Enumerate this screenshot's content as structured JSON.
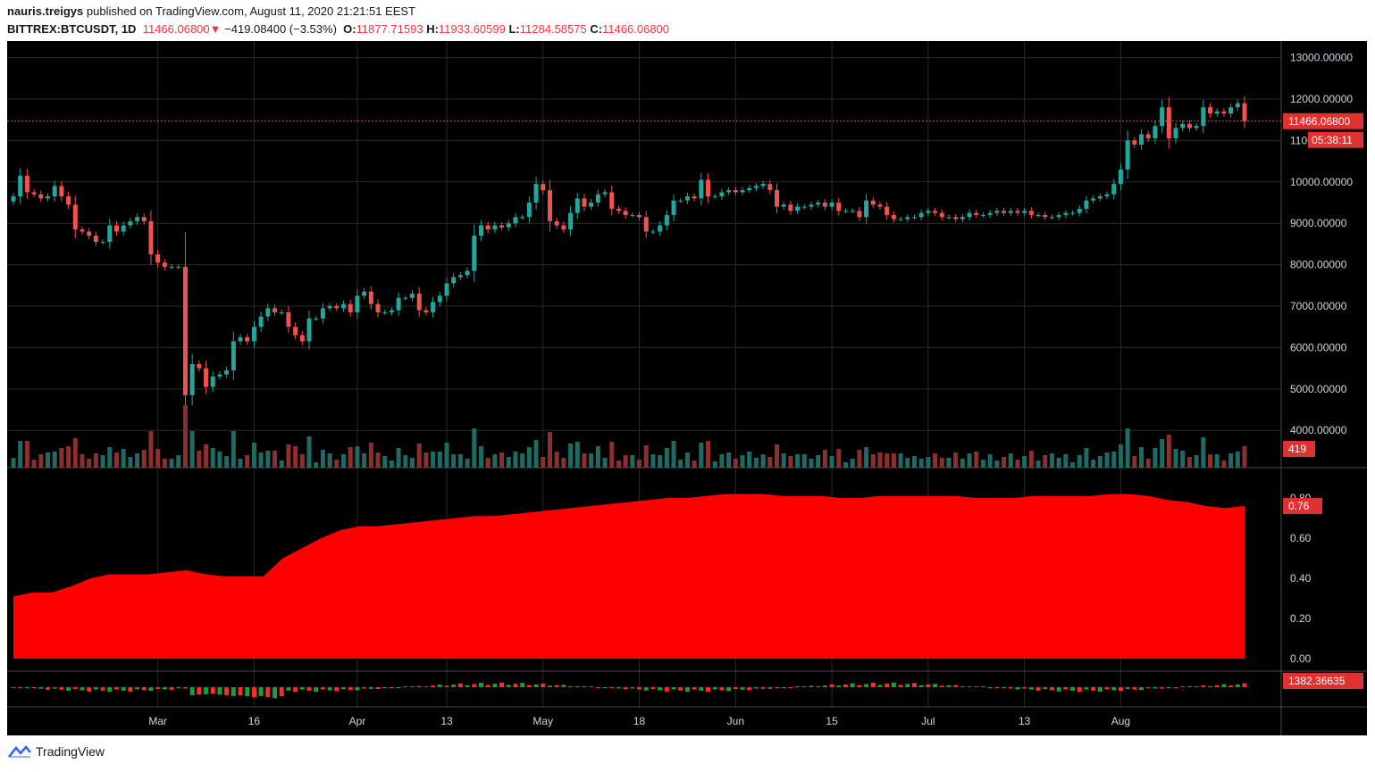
{
  "header": {
    "author": "nauris.treigys",
    "published": "published on TradingView.com, August 11, 2020 21:21:51 EEST",
    "symbol": "BITTREX:BTCUSDT, 1D",
    "last": "11466.06800",
    "change": "−419.08400 (−3.53%)",
    "open_label": "O:",
    "open": "11877.71593",
    "high_label": "H:",
    "high": "11933.60599",
    "low_label": "L:",
    "low": "11284.58575",
    "close_label": "C:",
    "close": "11466.06800"
  },
  "footer": {
    "brand": "TradingView"
  },
  "colors": {
    "up": "#26a69a",
    "down": "#ef5350",
    "bg": "#000000",
    "grid": "#2a2a2a",
    "tag": "#e03131",
    "indicator": "#ff0000"
  },
  "price_tags": {
    "last": "11466.06800",
    "countdown": "05:38:11",
    "volume": "419",
    "indicator": "0.76",
    "macd": "1382.36635"
  },
  "chart_data": {
    "type": "candlestick",
    "interval": "1D",
    "ylim": [
      3100,
      13400
    ],
    "yticks": [
      "13000.00000",
      "12000.00000",
      "11000.00000",
      "10000.00000",
      "9000.00000",
      "8000.00000",
      "7000.00000",
      "6000.00000",
      "5000.00000",
      "4000.00000"
    ],
    "xticks": [
      "Mar",
      "16",
      "Apr",
      "13",
      "May",
      "18",
      "Jun",
      "15",
      "Jul",
      "13",
      "Aug"
    ],
    "closes": [
      9650,
      10150,
      9750,
      9700,
      9600,
      9650,
      9900,
      9650,
      9450,
      8850,
      8800,
      8700,
      8550,
      8550,
      8950,
      8800,
      8950,
      9050,
      9150,
      9050,
      8250,
      8050,
      7950,
      7950,
      7950,
      4850,
      5600,
      5500,
      5050,
      5300,
      5350,
      5450,
      6150,
      6250,
      6150,
      6500,
      6750,
      6950,
      6850,
      6850,
      6500,
      6300,
      6150,
      6700,
      6700,
      6950,
      7000,
      6950,
      7050,
      6850,
      7250,
      7350,
      7050,
      6850,
      6850,
      6900,
      7200,
      7200,
      7300,
      6900,
      6850,
      7100,
      7250,
      7550,
      7700,
      7750,
      7850,
      8700,
      8950,
      8850,
      8950,
      8900,
      9000,
      9150,
      9150,
      9500,
      9950,
      9800,
      9050,
      8950,
      8850,
      9250,
      9600,
      9400,
      9500,
      9700,
      9750,
      9350,
      9300,
      9200,
      9200,
      9150,
      8800,
      8800,
      8950,
      9200,
      9550,
      9550,
      9650,
      9600,
      10050,
      9650,
      9650,
      9750,
      9800,
      9750,
      9800,
      9850,
      9900,
      9950,
      9800,
      9400,
      9450,
      9300,
      9400,
      9400,
      9450,
      9500,
      9400,
      9500,
      9300,
      9300,
      9300,
      9150,
      9550,
      9450,
      9400,
      9200,
      9100,
      9100,
      9150,
      9150,
      9250,
      9300,
      9250,
      9150,
      9150,
      9100,
      9150,
      9250,
      9200,
      9200,
      9250,
      9300,
      9250,
      9300,
      9250,
      9300,
      9200,
      9200,
      9150,
      9150,
      9200,
      9250,
      9250,
      9350,
      9550,
      9600,
      9650,
      9700,
      9950,
      10300,
      11000,
      10900,
      11150,
      11050,
      11350,
      11800,
      11050,
      11300,
      11400,
      11300,
      11350,
      11800,
      11650,
      11700,
      11650,
      11800,
      11900,
      11466
    ],
    "volume_last": 419,
    "indicator_last": 0.76,
    "indicator_yticks": [
      "0.80",
      "0.60",
      "0.40",
      "0.20",
      "0.00"
    ],
    "macd_last": 1382.36635
  }
}
